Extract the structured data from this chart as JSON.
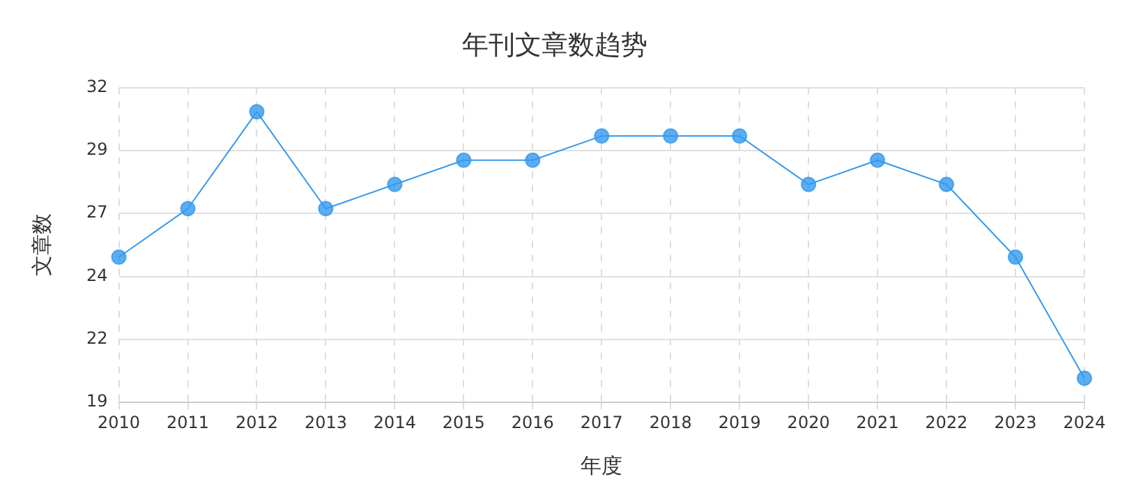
{
  "chart_data": {
    "type": "line",
    "title": "年刊文章数趋势",
    "xlabel": "年度",
    "ylabel": "文章数",
    "categories": [
      "2010",
      "2011",
      "2012",
      "2013",
      "2014",
      "2015",
      "2016",
      "2017",
      "2018",
      "2019",
      "2020",
      "2021",
      "2022",
      "2023",
      "2024"
    ],
    "series": [
      {
        "color": "#3399ee",
        "values": [
          25,
          27,
          31,
          27,
          28,
          29,
          29,
          30,
          30,
          30,
          28,
          29,
          28,
          25,
          20
        ]
      }
    ],
    "ylim": [
      19,
      32
    ],
    "yticks": [
      19,
      {
        "value": 21.6,
        "label": "22"
      },
      {
        "value": 24.2,
        "label": "24"
      },
      {
        "value": 26.8,
        "label": "27"
      },
      {
        "value": 29.4,
        "label": "29"
      },
      32
    ],
    "grid": true,
    "marker": "circle",
    "line_style": "solid",
    "legend": false
  }
}
